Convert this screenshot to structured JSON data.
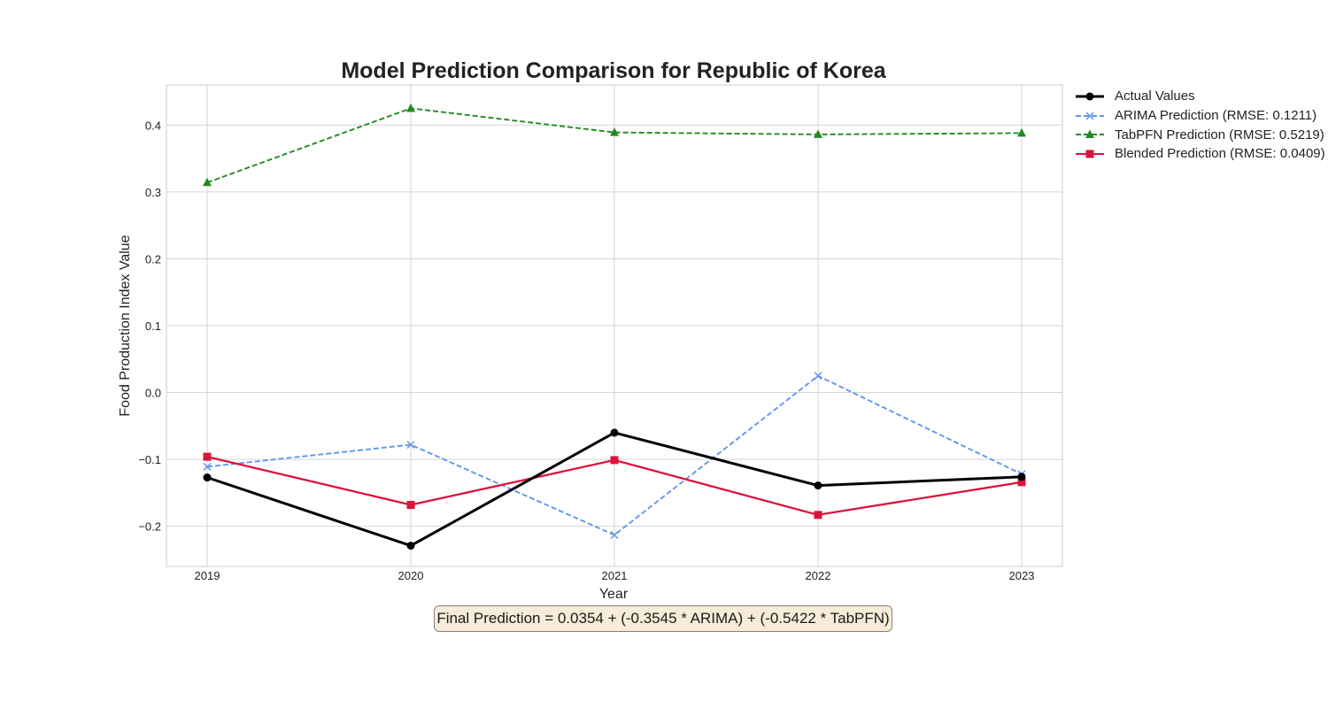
{
  "chart_data": {
    "type": "line",
    "title": "Model Prediction Comparison for Republic of Korea",
    "xlabel": "Year",
    "ylabel": "Food Production Index Value",
    "x": [
      2019,
      2020,
      2021,
      2022,
      2023
    ],
    "xlim": [
      2018.8,
      2023.2
    ],
    "ylim": [
      -0.26,
      0.46
    ],
    "yticks": [
      -0.2,
      -0.1,
      0.0,
      0.1,
      0.2,
      0.3,
      0.4
    ],
    "ytick_labels": [
      "−0.2",
      "−0.1",
      "0.0",
      "0.1",
      "0.2",
      "0.3",
      "0.4"
    ],
    "xtick_labels": [
      "2019",
      "2020",
      "2021",
      "2022",
      "2023"
    ],
    "grid": true,
    "legend_position": "outside-right",
    "series": [
      {
        "name": "Actual Values",
        "values": [
          -0.127,
          -0.229,
          -0.06,
          -0.139,
          -0.126
        ],
        "color": "#000000",
        "dash": "solid",
        "marker": "circle"
      },
      {
        "name": "ARIMA Prediction (RMSE: 0.1211)",
        "values": [
          -0.111,
          -0.078,
          -0.213,
          0.025,
          -0.122
        ],
        "color": "#6495ed",
        "dash": "dashed",
        "marker": "x"
      },
      {
        "name": "TabPFN Prediction (RMSE: 0.5219)",
        "values": [
          0.314,
          0.425,
          0.389,
          0.386,
          0.388
        ],
        "color": "#228b22",
        "dash": "dashed",
        "marker": "triangle"
      },
      {
        "name": "Blended Prediction (RMSE: 0.0409)",
        "values": [
          -0.096,
          -0.168,
          -0.101,
          -0.183,
          -0.134
        ],
        "color": "#dc143c",
        "dash": "solid",
        "marker": "square"
      }
    ],
    "annotation": "Final Prediction = 0.0354 + (-0.3545 * ARIMA) + (-0.5422 * TabPFN)"
  }
}
